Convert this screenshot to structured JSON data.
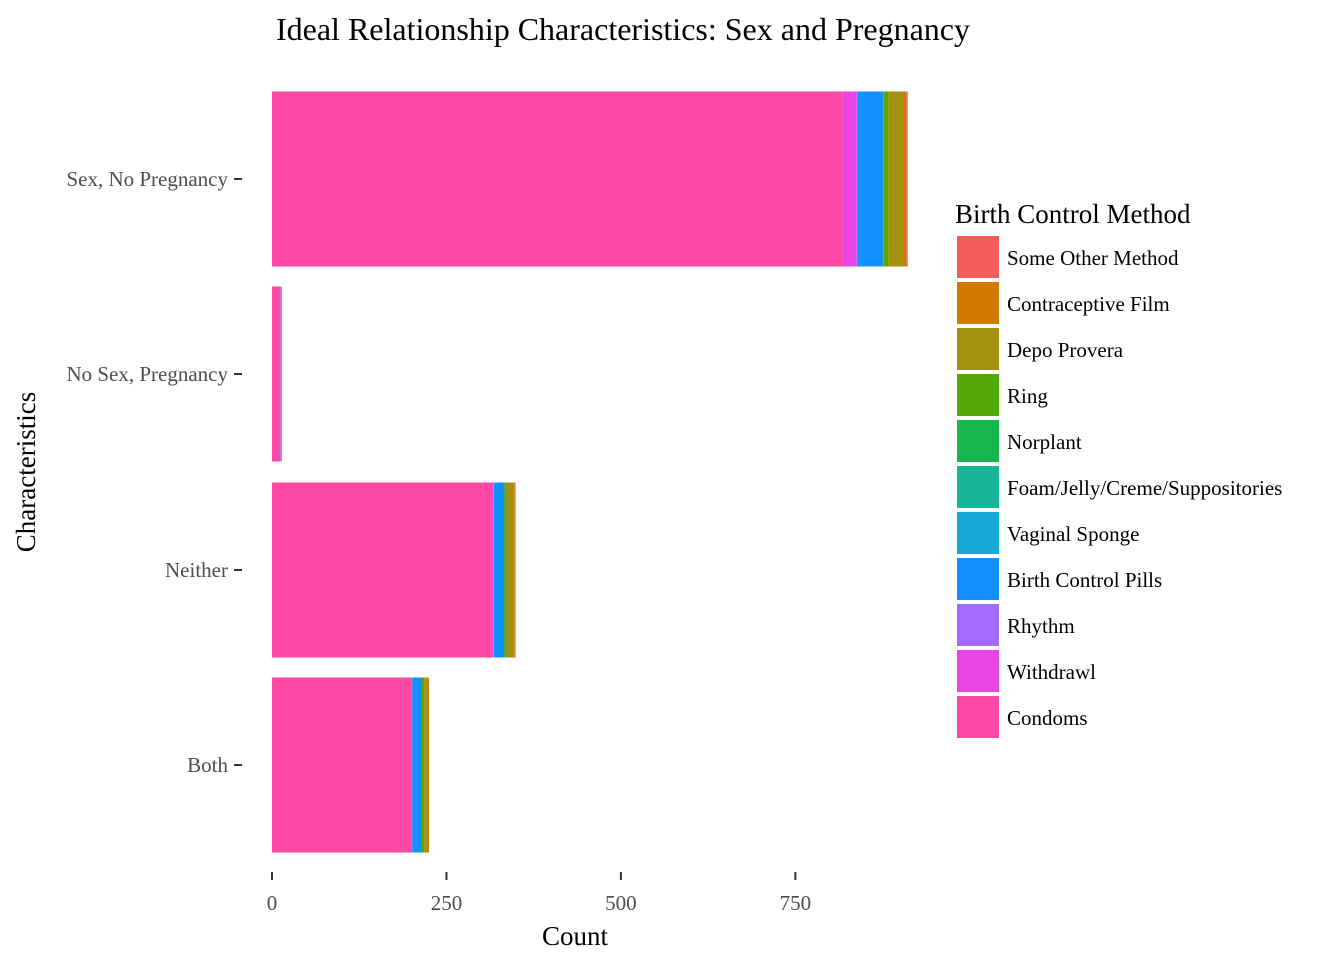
{
  "chart_data": {
    "type": "bar",
    "orientation": "horizontal",
    "stacked": true,
    "title": "Ideal Relationship Characteristics: Sex and Pregnancy",
    "xlabel": "Count",
    "ylabel": "Characteristics",
    "categories": [
      "Sex, No Pregnancy",
      "No Sex, Pregnancy",
      "Neither",
      "Both"
    ],
    "xlim": [
      0,
      910
    ],
    "xticks": [
      0,
      250,
      500,
      750
    ],
    "xtick_labels": [
      "0",
      "250",
      "500",
      "750"
    ],
    "grid": false,
    "legend": {
      "title": "Birth Control Method",
      "position": "right"
    },
    "series": [
      {
        "name": "Condoms",
        "color": "#FF48A5",
        "values": [
          818,
          12,
          316,
          200
        ]
      },
      {
        "name": "Withdrawl",
        "color": "#E844E6",
        "values": [
          20,
          0,
          1,
          1
        ]
      },
      {
        "name": "Rhythm",
        "color": "#A26BFF",
        "values": [
          1,
          2,
          1,
          0
        ]
      },
      {
        "name": "Birth Control Pills",
        "color": "#148FFF",
        "values": [
          37,
          0,
          15,
          14
        ]
      },
      {
        "name": "Vaginal Sponge",
        "color": "#17AAD9",
        "values": [
          0,
          0,
          0,
          0
        ]
      },
      {
        "name": "Foam/Jelly/Creme/Suppositories",
        "color": "#17B795",
        "values": [
          1,
          0,
          0,
          0
        ]
      },
      {
        "name": "Norplant",
        "color": "#15B64B",
        "values": [
          0,
          0,
          0,
          0
        ]
      },
      {
        "name": "Ring",
        "color": "#53A808",
        "values": [
          6,
          0,
          3,
          3
        ]
      },
      {
        "name": "Depo Provera",
        "color": "#A3920D",
        "values": [
          22,
          0,
          10,
          4
        ]
      },
      {
        "name": "Contraceptive Film",
        "color": "#D37800",
        "values": [
          4,
          0,
          2,
          3
        ]
      },
      {
        "name": "Some Other Method",
        "color": "#F35E5A",
        "values": [
          2,
          0,
          1,
          0
        ]
      }
    ]
  }
}
